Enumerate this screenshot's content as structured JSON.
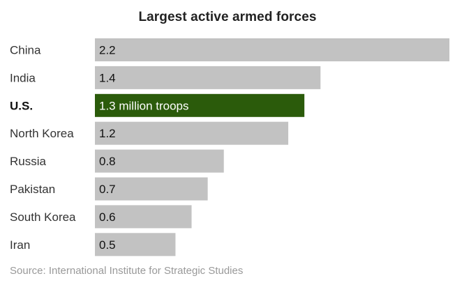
{
  "chart_data": {
    "type": "bar",
    "orientation": "horizontal",
    "title": "Largest active armed forces",
    "categories": [
      "China",
      "India",
      "U.S.",
      "North Korea",
      "Russia",
      "Pakistan",
      "South Korea",
      "Iran"
    ],
    "values": [
      2.2,
      1.4,
      1.3,
      1.2,
      0.8,
      0.7,
      0.6,
      0.5
    ],
    "value_labels": [
      "2.2",
      "1.4",
      "1.3 million troops",
      "1.2",
      "0.8",
      "0.7",
      "0.6",
      "0.5"
    ],
    "highlight_index": 2,
    "bar_color": "#c2c2c2",
    "highlight_color": "#2b5b0b",
    "xlim": [
      0,
      2.2
    ],
    "grid": false,
    "legend": "none",
    "source": "Source: International Institute for Strategic Studies"
  }
}
